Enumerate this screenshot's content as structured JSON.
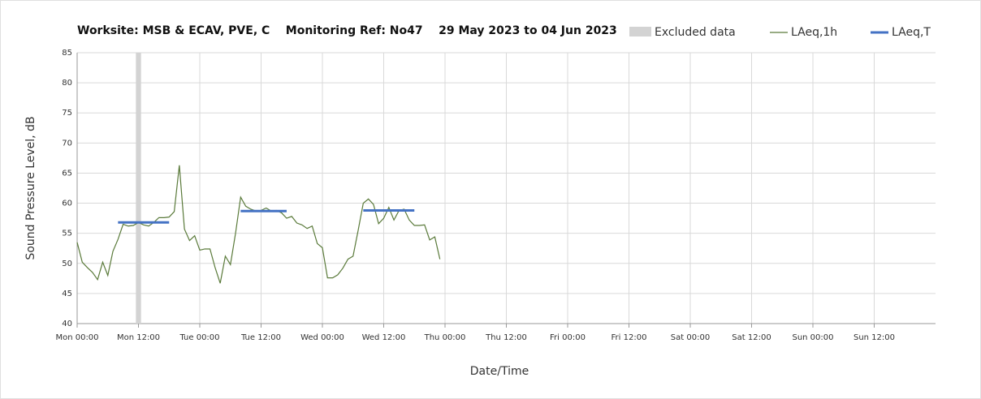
{
  "chart_data": {
    "type": "line",
    "title": "Worksite: MSB & ECAV, PVE, C    Monitoring Ref: No47    29 May 2023 to 04 Jun 2023",
    "x_label": "Date/Time",
    "y_label": "Sound Pressure Level, dB",
    "xlim": [
      0,
      168
    ],
    "xticks": [
      {
        "value": 0,
        "label": "Mon 00:00"
      },
      {
        "value": 12,
        "label": "Mon 12:00"
      },
      {
        "value": 24,
        "label": "Tue 00:00"
      },
      {
        "value": 36,
        "label": "Tue 12:00"
      },
      {
        "value": 48,
        "label": "Wed 00:00"
      },
      {
        "value": 60,
        "label": "Wed 12:00"
      },
      {
        "value": 72,
        "label": "Thu 00:00"
      },
      {
        "value": 84,
        "label": "Thu 12:00"
      },
      {
        "value": 96,
        "label": "Fri 00:00"
      },
      {
        "value": 108,
        "label": "Fri 12:00"
      },
      {
        "value": 120,
        "label": "Sat 00:00"
      },
      {
        "value": 132,
        "label": "Sat 12:00"
      },
      {
        "value": 144,
        "label": "Sun 00:00"
      },
      {
        "value": 156,
        "label": "Sun 12:00"
      }
    ],
    "ylim": [
      40,
      85
    ],
    "yticks": [
      40,
      45,
      50,
      55,
      60,
      65,
      70,
      75,
      80,
      85
    ],
    "grid": true,
    "legend": "top-right",
    "excluded": {
      "name": "Excluded data",
      "color": "#d3d3d3",
      "ranges": [
        [
          11.5,
          12.5
        ]
      ]
    },
    "series": [
      {
        "name": "LAeq,1h",
        "color": "#5a7a3a",
        "x": [
          0,
          1,
          2,
          3,
          4,
          5,
          6,
          7,
          8,
          9,
          10,
          11,
          12,
          13,
          14,
          15,
          16,
          17,
          18,
          19,
          20,
          21,
          22,
          23,
          24,
          25,
          26,
          27,
          28,
          29,
          30,
          31,
          32,
          33,
          34,
          35,
          36,
          37,
          38,
          39,
          40,
          41,
          42,
          43,
          44,
          45,
          46,
          47,
          48,
          49,
          50,
          51,
          52,
          53,
          54,
          55,
          56,
          57,
          58,
          59,
          60,
          61,
          62,
          63,
          64,
          65,
          66,
          67,
          68,
          69,
          70,
          71
        ],
        "values": [
          53.5,
          50.2,
          49.3,
          48.5,
          47.3,
          50.2,
          48.0,
          52,
          54,
          56.5,
          56.2,
          56.3,
          56.8,
          56.4,
          56.2,
          56.8,
          57.6,
          57.6,
          57.7,
          58.6,
          66.3,
          55.7,
          53.8,
          54.6,
          52.2,
          52.4,
          52.4,
          49.3,
          46.7,
          51.2,
          49.8,
          55,
          61,
          59.5,
          59,
          58.7,
          58.8,
          59.2,
          58.7,
          58.8,
          58.4,
          57.5,
          57.8,
          56.7,
          56.4,
          55.8,
          56.2,
          53.3,
          52.6,
          47.6,
          47.6,
          48.1,
          49.2,
          50.7,
          51.2,
          55.5,
          60,
          60.7,
          59.8,
          56.6,
          57.5,
          59.3,
          57.2,
          58.8,
          59.0,
          57.2,
          56.3,
          56.3,
          56.4,
          53.9,
          54.4,
          50.7
        ]
      },
      {
        "name": "LAeq,T",
        "color": "#4472c4",
        "segments": [
          {
            "x": [
              8,
              18
            ],
            "value": 56.8
          },
          {
            "x": [
              32,
              41
            ],
            "value": 58.7
          },
          {
            "x": [
              56,
              66
            ],
            "value": 58.8
          }
        ]
      }
    ]
  }
}
